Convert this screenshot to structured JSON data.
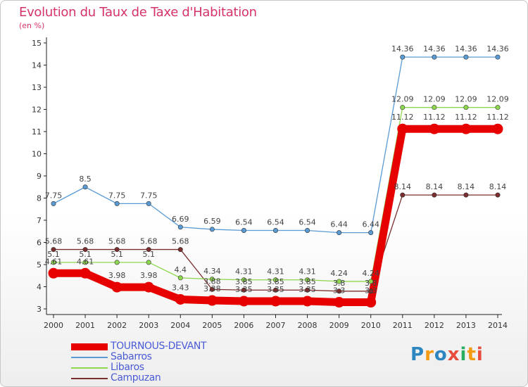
{
  "header": {
    "title": "Evolution du Taux de Taxe d'Habitation",
    "subtitle": "(en %)"
  },
  "logo": {
    "text": "Proxiti",
    "colors": [
      "#2e86c1",
      "#f39c12",
      "#2e86c1",
      "#e74c3c",
      "#27ae60",
      "#f39c12",
      "#e74c3c"
    ]
  },
  "chart_data": {
    "type": "line",
    "x": [
      "2000",
      "2001",
      "2002",
      "2003",
      "2004",
      "2005",
      "2006",
      "2007",
      "2008",
      "2009",
      "2010",
      "2011",
      "2012",
      "2013",
      "2014"
    ],
    "ylim": [
      3,
      15
    ],
    "yticks": [
      "3",
      "4",
      "5",
      "6",
      "7",
      "8",
      "9",
      "10",
      "11",
      "12",
      "13",
      "14",
      "15"
    ],
    "grid": false,
    "legend_position": "bottom-left",
    "series": [
      {
        "name": "Sabarros",
        "color": "#5b9bd5",
        "values": [
          7.75,
          8.5,
          7.75,
          7.75,
          6.69,
          6.59,
          6.54,
          6.54,
          6.54,
          6.44,
          6.44,
          14.36,
          14.36,
          14.36,
          14.36
        ],
        "labels": [
          "7.75",
          "8.5",
          "7.75",
          "7.75",
          "6.69",
          "6.59",
          "6.54",
          "6.54",
          "6.54",
          "6.44",
          "6.44",
          "14.36",
          "14.36",
          "14.36",
          "14.36"
        ]
      },
      {
        "name": "Campuzan",
        "color": "#7b2e2e",
        "values": [
          5.68,
          5.68,
          5.68,
          5.68,
          5.68,
          3.88,
          3.85,
          3.85,
          3.85,
          3.8,
          3.8,
          8.14,
          8.14,
          8.14,
          8.14
        ],
        "labels": [
          "5.68",
          "5.68",
          "5.68",
          "5.68",
          "5.68",
          "3.88",
          "3.85",
          "3.85",
          "3.85",
          "3.8",
          "3.8",
          "8.14",
          "8.14",
          "8.14",
          "8.14"
        ]
      },
      {
        "name": "Libaros",
        "color": "#8ed84e",
        "values": [
          5.1,
          5.1,
          5.1,
          5.1,
          4.4,
          4.34,
          4.31,
          4.31,
          4.31,
          4.24,
          4.24,
          12.09,
          12.09,
          12.09,
          12.09
        ],
        "labels": [
          "5.1",
          "5.1",
          "5.1",
          "5.1",
          "4.4",
          "4.34",
          "4.31",
          "4.31",
          "4.31",
          "4.24",
          "4.24",
          "12.09",
          "12.09",
          "12.09",
          "12.09"
        ]
      },
      {
        "name": "TOURNOUS-DEVANT",
        "color": "#e60000",
        "values": [
          4.61,
          4.61,
          3.98,
          3.98,
          3.43,
          3.38,
          3.35,
          3.35,
          3.35,
          3.3,
          3.3,
          11.12,
          11.12,
          11.12,
          11.12
        ],
        "labels": [
          "4.61",
          "4.61",
          "3.98",
          "3.98",
          "3.43",
          "3.38",
          "3.35",
          "3.35",
          "3.35",
          "3.3",
          "3.3",
          "11.12",
          "11.12",
          "11.12",
          "11.12"
        ]
      }
    ],
    "legend": [
      "TOURNOUS-DEVANT",
      "Sabarros",
      "Libaros",
      "Campuzan"
    ]
  }
}
